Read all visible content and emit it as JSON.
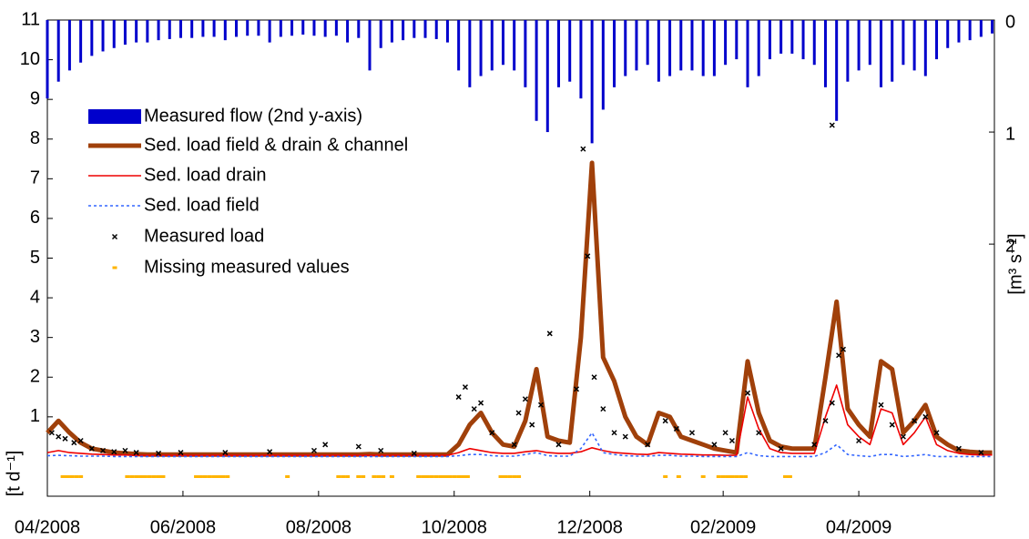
{
  "chart_data": {
    "type": "line",
    "xlim": [
      0,
      426
    ],
    "xticks": [
      {
        "value": 0,
        "label": "04/2008"
      },
      {
        "value": 61,
        "label": "06/2008"
      },
      {
        "value": 122,
        "label": "08/2008"
      },
      {
        "value": 183,
        "label": "10/2008"
      },
      {
        "value": 244,
        "label": "12/2008"
      },
      {
        "value": 304,
        "label": "02/2009"
      },
      {
        "value": 365,
        "label": "04/2009"
      }
    ],
    "ylim": [
      -1,
      11
    ],
    "yticks": [
      1,
      2,
      3,
      4,
      5,
      6,
      7,
      8,
      9,
      10,
      11
    ],
    "ylabel": "[t d⁻¹]",
    "y2lim": [
      0,
      4.25
    ],
    "y2ticks": [
      0,
      1,
      2
    ],
    "y2label": "[m³ s⁻¹]",
    "x": [
      0,
      5,
      10,
      15,
      20,
      25,
      30,
      35,
      40,
      45,
      50,
      55,
      60,
      65,
      70,
      75,
      80,
      85,
      90,
      95,
      100,
      105,
      110,
      115,
      120,
      125,
      130,
      135,
      140,
      145,
      150,
      155,
      160,
      165,
      170,
      175,
      180,
      185,
      190,
      195,
      200,
      205,
      210,
      215,
      220,
      225,
      230,
      235,
      240,
      245,
      250,
      255,
      260,
      265,
      270,
      275,
      280,
      285,
      290,
      295,
      300,
      305,
      310,
      315,
      320,
      325,
      330,
      335,
      340,
      345,
      350,
      355,
      360,
      365,
      370,
      375,
      380,
      385,
      390,
      395,
      400,
      405,
      410,
      415,
      420,
      425
    ],
    "series": [
      {
        "name": "Measured flow (2nd y-axis)",
        "color": "#0000cc",
        "axis": "y2",
        "style": "bar",
        "values": [
          0.7,
          0.55,
          0.45,
          0.38,
          0.32,
          0.28,
          0.25,
          0.22,
          0.2,
          0.2,
          0.18,
          0.17,
          0.16,
          0.16,
          0.15,
          0.15,
          0.18,
          0.15,
          0.14,
          0.14,
          0.2,
          0.15,
          0.14,
          0.13,
          0.14,
          0.15,
          0.14,
          0.2,
          0.16,
          0.45,
          0.25,
          0.2,
          0.18,
          0.16,
          0.16,
          0.17,
          0.2,
          0.45,
          0.6,
          0.5,
          0.45,
          0.4,
          0.45,
          0.6,
          0.9,
          1.0,
          0.6,
          0.55,
          0.7,
          1.1,
          0.8,
          0.6,
          0.5,
          0.45,
          0.4,
          0.55,
          0.5,
          0.45,
          0.45,
          0.5,
          0.5,
          0.4,
          0.35,
          0.6,
          0.5,
          0.35,
          0.3,
          0.3,
          0.35,
          0.4,
          0.6,
          0.9,
          0.55,
          0.45,
          0.4,
          0.6,
          0.55,
          0.4,
          0.45,
          0.5,
          0.35,
          0.25,
          0.2,
          0.18,
          0.15,
          0.12
        ]
      },
      {
        "name": "Sed. load field & drain & channel",
        "color": "#a0400a",
        "style": "thick",
        "values": [
          0.6,
          0.9,
          0.6,
          0.35,
          0.2,
          0.15,
          0.1,
          0.08,
          0.06,
          0.05,
          0.05,
          0.05,
          0.05,
          0.05,
          0.05,
          0.05,
          0.05,
          0.05,
          0.05,
          0.05,
          0.05,
          0.05,
          0.05,
          0.05,
          0.05,
          0.05,
          0.05,
          0.05,
          0.05,
          0.06,
          0.05,
          0.05,
          0.05,
          0.05,
          0.05,
          0.05,
          0.05,
          0.3,
          0.8,
          1.1,
          0.6,
          0.3,
          0.25,
          0.9,
          2.2,
          0.5,
          0.4,
          0.35,
          3.0,
          7.4,
          2.5,
          1.9,
          1.0,
          0.5,
          0.3,
          1.1,
          1.0,
          0.5,
          0.4,
          0.3,
          0.2,
          0.15,
          0.1,
          2.4,
          1.1,
          0.4,
          0.25,
          0.2,
          0.2,
          0.2,
          2.0,
          3.9,
          1.2,
          0.8,
          0.5,
          2.4,
          2.2,
          0.6,
          0.9,
          1.3,
          0.5,
          0.3,
          0.15,
          0.12,
          0.1,
          0.1
        ]
      },
      {
        "name": "Sed. load drain",
        "color": "#ee0000",
        "style": "thin",
        "values": [
          0.1,
          0.15,
          0.1,
          0.08,
          0.06,
          0.05,
          0.04,
          0.04,
          0.03,
          0.03,
          0.03,
          0.03,
          0.03,
          0.03,
          0.03,
          0.03,
          0.03,
          0.03,
          0.03,
          0.03,
          0.03,
          0.03,
          0.03,
          0.03,
          0.03,
          0.03,
          0.03,
          0.03,
          0.03,
          0.03,
          0.03,
          0.03,
          0.03,
          0.03,
          0.03,
          0.03,
          0.03,
          0.1,
          0.2,
          0.15,
          0.1,
          0.08,
          0.08,
          0.12,
          0.15,
          0.1,
          0.08,
          0.08,
          0.12,
          0.22,
          0.15,
          0.1,
          0.08,
          0.06,
          0.05,
          0.1,
          0.08,
          0.06,
          0.05,
          0.04,
          0.04,
          0.03,
          0.03,
          1.5,
          0.7,
          0.2,
          0.1,
          0.08,
          0.08,
          0.08,
          1.0,
          1.8,
          0.8,
          0.5,
          0.3,
          1.2,
          1.1,
          0.3,
          0.6,
          1.0,
          0.3,
          0.15,
          0.08,
          0.05,
          0.04,
          0.04
        ]
      },
      {
        "name": "Sed. load field",
        "color": "#3366ff",
        "style": "dash",
        "values": [
          0.02,
          0.03,
          0.02,
          0.01,
          0.01,
          0.01,
          0,
          0,
          0,
          0,
          0,
          0,
          0,
          0,
          0,
          0,
          0,
          0,
          0,
          0,
          0,
          0,
          0,
          0,
          0,
          0,
          0,
          0,
          0,
          0,
          0,
          0,
          0,
          0,
          0,
          0,
          0,
          0.02,
          0.05,
          0.05,
          0.02,
          0.01,
          0.01,
          0.05,
          0.1,
          0.02,
          0.01,
          0.01,
          0.2,
          0.6,
          0.1,
          0.05,
          0.02,
          0.01,
          0.01,
          0.03,
          0.03,
          0.01,
          0.01,
          0,
          0,
          0,
          0,
          0.1,
          0.02,
          0,
          0,
          0,
          0,
          0,
          0.1,
          0.3,
          0.05,
          0.02,
          0,
          0.05,
          0.05,
          0,
          0.02,
          0.05,
          0,
          0,
          0,
          0,
          0,
          0
        ]
      }
    ],
    "measured": {
      "name": "Measured load",
      "color": "#000000",
      "x": [
        2,
        5,
        8,
        12,
        15,
        20,
        25,
        30,
        35,
        40,
        50,
        60,
        80,
        100,
        120,
        125,
        140,
        150,
        165,
        185,
        188,
        192,
        195,
        200,
        210,
        212,
        215,
        218,
        222,
        226,
        230,
        238,
        241,
        243,
        246,
        250,
        255,
        260,
        270,
        278,
        283,
        290,
        300,
        305,
        308,
        315,
        320,
        330,
        345,
        350,
        353,
        356,
        358,
        353,
        365,
        375,
        380,
        385,
        390,
        395,
        400,
        410,
        420
      ],
      "values": [
        0.6,
        0.5,
        0.45,
        0.35,
        0.4,
        0.2,
        0.15,
        0.12,
        0.15,
        0.1,
        0.08,
        0.1,
        0.1,
        0.12,
        0.15,
        0.3,
        0.25,
        0.15,
        0.08,
        1.5,
        1.75,
        1.2,
        1.35,
        0.6,
        0.3,
        1.1,
        1.45,
        0.8,
        1.3,
        3.1,
        0.3,
        1.7,
        7.75,
        5.05,
        2.0,
        1.2,
        0.6,
        0.5,
        0.3,
        0.9,
        0.7,
        0.6,
        0.3,
        0.6,
        0.4,
        1.6,
        0.6,
        0.2,
        0.3,
        0.9,
        1.35,
        2.55,
        2.7,
        8.35,
        0.4,
        1.3,
        0.8,
        0.5,
        0.9,
        1.0,
        0.6,
        0.2,
        0.1
      ]
    },
    "missing": {
      "name": "Missing measured values",
      "color": "#ffb400",
      "x": [
        7,
        9,
        11,
        13,
        15,
        36,
        38,
        40,
        42,
        44,
        46,
        48,
        50,
        52,
        67,
        69,
        71,
        73,
        75,
        77,
        79,
        81,
        108,
        131,
        133,
        135,
        140,
        142,
        147,
        149,
        151,
        155,
        167,
        169,
        171,
        173,
        175,
        177,
        179,
        181,
        183,
        185,
        187,
        189,
        204,
        206,
        208,
        210,
        212,
        278,
        284,
        295,
        302,
        304,
        306,
        308,
        310,
        312,
        314,
        332,
        334
      ]
    }
  }
}
